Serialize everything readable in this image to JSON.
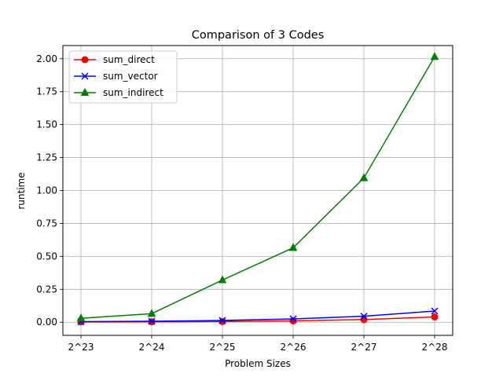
{
  "chart_data": {
    "type": "line",
    "title": "Comparison of 3 Codes",
    "xlabel": "Problem Sizes",
    "ylabel": "runtime",
    "categories": [
      "2^23",
      "2^24",
      "2^25",
      "2^26",
      "2^27",
      "2^28"
    ],
    "ylim": [
      -0.1,
      2.1
    ],
    "yticks": [
      0.0,
      0.25,
      0.5,
      0.75,
      1.0,
      1.25,
      1.5,
      1.75,
      2.0
    ],
    "ytick_labels": [
      "0.00",
      "0.25",
      "0.50",
      "0.75",
      "1.00",
      "1.25",
      "1.50",
      "1.75",
      "2.00"
    ],
    "grid": true,
    "legend_position": "top-left",
    "series": [
      {
        "name": "sum_direct",
        "values": [
          0.002,
          0.003,
          0.005,
          0.01,
          0.02,
          0.04
        ],
        "color": "#ff0000",
        "marker": "circle"
      },
      {
        "name": "sum_vector",
        "values": [
          0.004,
          0.007,
          0.013,
          0.025,
          0.045,
          0.085
        ],
        "color": "#0000ff",
        "marker": "x"
      },
      {
        "name": "sum_indirect",
        "values": [
          0.03,
          0.065,
          0.32,
          0.565,
          1.095,
          2.015
        ],
        "color": "#008000",
        "marker": "triangle"
      }
    ]
  }
}
